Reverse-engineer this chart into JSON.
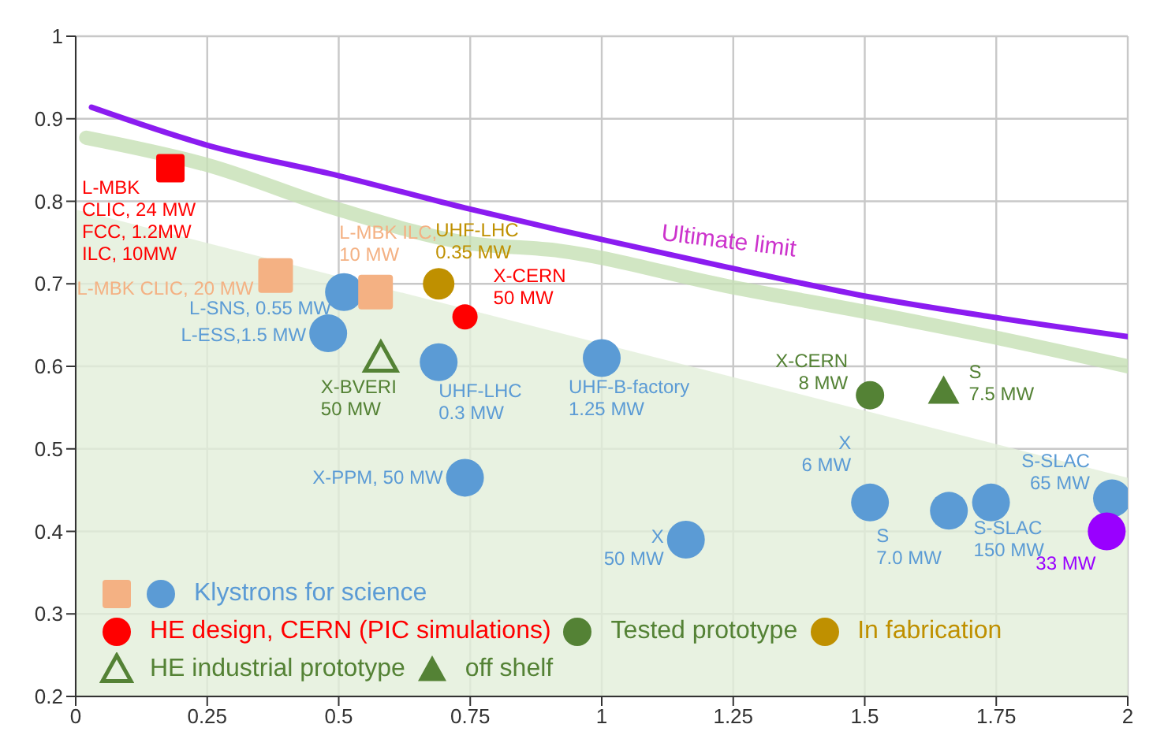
{
  "chart_data": {
    "type": "scatter",
    "xlim": [
      0,
      2
    ],
    "xticks": [
      0,
      0.25,
      0.5,
      0.75,
      1,
      1.25,
      1.5,
      1.75,
      2
    ],
    "ylim": [
      0.2,
      1
    ],
    "yticks": [
      0.2,
      0.3,
      0.4,
      0.5,
      0.6,
      0.7,
      0.8,
      0.9,
      1
    ],
    "grid": true,
    "legend": "bottom left",
    "series": [
      {
        "name": "Klystrons for  science",
        "color": "#5b9bd5",
        "marker": "circle",
        "x": [
          0.51,
          0.48,
          0.69,
          1.0,
          0.74,
          1.16,
          1.51,
          1.66,
          1.74,
          1.97
        ],
        "values": [
          0.69,
          0.64,
          0.605,
          0.61,
          0.465,
          0.39,
          0.435,
          0.425,
          0.435,
          0.44
        ]
      },
      {
        "color": "#f4b183",
        "marker": "square",
        "x": [
          0.38,
          0.57
        ],
        "values": [
          0.71,
          0.69
        ]
      },
      {
        "name": "HE design, CERN (PIC simulations)",
        "color": "#ff0000",
        "marker": "circle",
        "x": [
          0.74
        ],
        "values": [
          0.66
        ]
      },
      {
        "color": "#ff0000",
        "marker": "square",
        "x": [
          0.18
        ],
        "values": [
          0.84
        ]
      },
      {
        "name": "Tested prototype",
        "color": "#548235",
        "marker": "circle",
        "x": [
          1.51
        ],
        "values": [
          0.565
        ]
      },
      {
        "name": "In fabrication",
        "color": "#bf9000",
        "marker": "circle",
        "x": [
          0.69
        ],
        "values": [
          0.7
        ]
      },
      {
        "name": "HE industrial prototype",
        "color": "#548235",
        "marker": "triangle-open",
        "x": [
          0.58
        ],
        "values": [
          0.61
        ]
      },
      {
        "name": "off shelf",
        "color": "#548235",
        "marker": "triangle",
        "x": [
          1.65
        ],
        "values": [
          0.57
        ]
      },
      {
        "color": "#9900ff",
        "marker": "circle",
        "x": [
          1.96
        ],
        "values": [
          0.4
        ]
      },
      {
        "type": "area",
        "color": "#e2efd9",
        "x": [
          0,
          2
        ],
        "values": [
          0.79,
          0.465
        ]
      },
      {
        "type": "line",
        "color": "#c5e0b4",
        "x": [
          0.02,
          0.25,
          0.5,
          0.74,
          0.92,
          1.24,
          1.51,
          1.74,
          2.0
        ],
        "values": [
          0.877,
          0.844,
          0.79,
          0.75,
          0.74,
          0.697,
          0.665,
          0.636,
          0.6
        ]
      },
      {
        "type": "line",
        "name": "Ultimate limit",
        "color": "#8b1cf0",
        "x": [
          0.03,
          0.25,
          0.5,
          0.74,
          0.92,
          1.24,
          1.51,
          1.74,
          2.0
        ],
        "values": [
          0.914,
          0.868,
          0.831,
          0.792,
          0.765,
          0.72,
          0.684,
          0.66,
          0.636
        ]
      }
    ],
    "annotations": [
      {
        "text": "L-MBK\nCLIC, 24 MW\nFCC, 1.2MW\nILC, 10MW",
        "x": 0.18,
        "y": 0.84
      },
      {
        "text": "L-MBK CLIC, 20 MW",
        "x": 0.38,
        "y": 0.71
      },
      {
        "text": "L-MBK ILC,\n10 MW",
        "x": 0.57,
        "y": 0.69
      },
      {
        "text": "L-SNS, 0.55 MW",
        "x": 0.51,
        "y": 0.69
      },
      {
        "text": "L-ESS,1.5 MW",
        "x": 0.48,
        "y": 0.64
      },
      {
        "text": "X-BVERI\n50 MW",
        "x": 0.58,
        "y": 0.61
      },
      {
        "text": "UHF-LHC\n0.35 MW",
        "x": 0.69,
        "y": 0.7
      },
      {
        "text": "X-CERN\n50 MW",
        "x": 0.74,
        "y": 0.66
      },
      {
        "text": "UHF-LHC\n0.3 MW",
        "x": 0.69,
        "y": 0.605
      },
      {
        "text": "UHF-B-factory\n1.25 MW",
        "x": 1.0,
        "y": 0.61
      },
      {
        "text": "X-PPM, 50 MW",
        "x": 0.74,
        "y": 0.465
      },
      {
        "text": "X\n50 MW",
        "x": 1.16,
        "y": 0.39
      },
      {
        "text": "X-CERN\n8 MW",
        "x": 1.51,
        "y": 0.565
      },
      {
        "text": "S\n7.5 MW",
        "x": 1.65,
        "y": 0.57
      },
      {
        "text": "X\n6 MW",
        "x": 1.51,
        "y": 0.435
      },
      {
        "text": "S\n7.0 MW",
        "x": 1.66,
        "y": 0.425
      },
      {
        "text": "S-SLAC\n150 MW",
        "x": 1.74,
        "y": 0.435
      },
      {
        "text": "S-SLAC\n65 MW",
        "x": 1.97,
        "y": 0.44
      },
      {
        "text": "33 MW",
        "x": 1.96,
        "y": 0.4
      }
    ]
  }
}
